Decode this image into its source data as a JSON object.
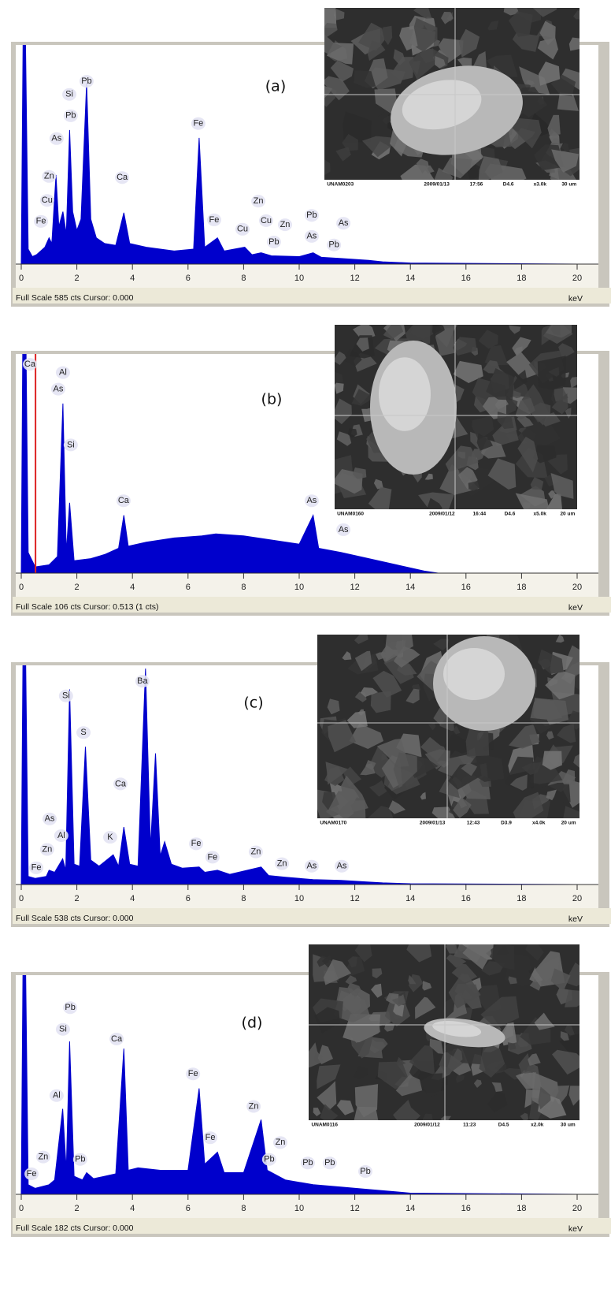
{
  "chart_data": [
    {
      "type": "area",
      "label": "(a)",
      "color": "#0000cc",
      "x": [
        0,
        0.1,
        0.25,
        0.4,
        0.55,
        0.7,
        0.85,
        1.0,
        1.1,
        1.25,
        1.35,
        1.5,
        1.62,
        1.74,
        1.85,
        2.0,
        2.15,
        2.35,
        2.5,
        2.7,
        3.0,
        3.4,
        3.69,
        3.9,
        4.5,
        5.5,
        6.2,
        6.4,
        6.6,
        7.06,
        7.3,
        8.04,
        8.3,
        8.63,
        9.0,
        10.0,
        10.5,
        10.8,
        11.5,
        12.5,
        13,
        14,
        20
      ],
      "values": [
        0,
        900,
        40,
        20,
        25,
        35,
        45,
        70,
        55,
        238,
        100,
        140,
        80,
        358,
        140,
        90,
        120,
        484,
        120,
        70,
        55,
        50,
        137,
        55,
        45,
        35,
        40,
        337,
        45,
        70,
        35,
        45,
        25,
        30,
        22,
        20,
        30,
        18,
        15,
        10,
        6,
        3,
        0
      ],
      "xlim": [
        0,
        20
      ],
      "ylim": [
        0,
        585
      ],
      "xticks": [
        0,
        2,
        4,
        6,
        8,
        10,
        12,
        14,
        16,
        18,
        20
      ],
      "xlabel": "keV",
      "footer": "Full Scale 585 cts Cursor: 0.000",
      "annotations": [
        {
          "text": "Pb",
          "x": 2.35,
          "y": 488
        },
        {
          "text": "Si",
          "x": 1.73,
          "y": 453
        },
        {
          "text": "Pb",
          "x": 1.78,
          "y": 396
        },
        {
          "text": "As",
          "x": 1.27,
          "y": 335
        },
        {
          "text": "Zn",
          "x": 1.0,
          "y": 234
        },
        {
          "text": "Cu",
          "x": 0.93,
          "y": 170
        },
        {
          "text": "Fe",
          "x": 0.71,
          "y": 114
        },
        {
          "text": "Fe",
          "x": 6.37,
          "y": 375
        },
        {
          "text": "Ca",
          "x": 3.63,
          "y": 231
        },
        {
          "text": "Fe",
          "x": 6.94,
          "y": 118
        },
        {
          "text": "Cu",
          "x": 7.96,
          "y": 93
        },
        {
          "text": "Zn",
          "x": 8.53,
          "y": 168
        },
        {
          "text": "Cu",
          "x": 8.81,
          "y": 116
        },
        {
          "text": "Zn",
          "x": 9.49,
          "y": 105
        },
        {
          "text": "Pb",
          "x": 9.09,
          "y": 59
        },
        {
          "text": "Pb",
          "x": 10.45,
          "y": 130
        },
        {
          "text": "As",
          "x": 10.45,
          "y": 74
        },
        {
          "text": "Pb",
          "x": 11.25,
          "y": 51
        },
        {
          "text": "As",
          "x": 11.59,
          "y": 109
        }
      ],
      "image_caption": [
        "UNAM0203",
        "2009/01/13",
        "17:56",
        "D4.6",
        "x3.0k",
        "30 um"
      ]
    },
    {
      "type": "area",
      "label": "(b)",
      "color": "#0000cc",
      "x": [
        0,
        0.1,
        0.25,
        0.5,
        1.0,
        1.3,
        1.5,
        1.62,
        1.74,
        1.9,
        2.5,
        3.0,
        3.5,
        3.69,
        3.85,
        4.5,
        5.5,
        6.5,
        7.0,
        8.0,
        9.0,
        10.0,
        10.5,
        10.7,
        11.5,
        12.5,
        13.5,
        14.5,
        15,
        20
      ],
      "values": [
        0,
        200,
        10,
        3,
        4,
        8,
        82,
        10,
        34,
        6,
        7,
        9,
        12,
        28,
        13,
        15,
        17,
        18,
        19,
        18,
        16,
        14,
        28,
        12,
        10,
        7,
        4,
        1,
        0,
        0
      ],
      "xlim": [
        0,
        20
      ],
      "ylim": [
        0,
        106
      ],
      "xticks": [
        0,
        2,
        4,
        6,
        8,
        10,
        12,
        14,
        16,
        18,
        20
      ],
      "xlabel": "keV",
      "cursor": 0.513,
      "cursor_color": "#dd2222",
      "footer": "Full Scale 106 cts Cursor: 0.513  (1 cts)",
      "annotations": [
        {
          "text": "Ca",
          "x": 0.31,
          "y": 101
        },
        {
          "text": "Al",
          "x": 1.5,
          "y": 97
        },
        {
          "text": "As",
          "x": 1.33,
          "y": 89
        },
        {
          "text": "Si",
          "x": 1.78,
          "y": 62
        },
        {
          "text": "Ca",
          "x": 3.68,
          "y": 35
        },
        {
          "text": "As",
          "x": 10.45,
          "y": 35
        },
        {
          "text": "As",
          "x": 11.59,
          "y": 21
        }
      ],
      "image_caption": [
        "UNAM0160",
        "2009/01/12",
        "16:44",
        "D4.6",
        "x5.0k",
        "20 um"
      ]
    },
    {
      "type": "area",
      "label": "(c)",
      "color": "#0000cc",
      "x": [
        0,
        0.1,
        0.25,
        0.5,
        0.9,
        1.0,
        1.2,
        1.49,
        1.6,
        1.74,
        1.9,
        2.1,
        2.31,
        2.5,
        2.8,
        3.31,
        3.5,
        3.69,
        3.9,
        4.2,
        4.47,
        4.65,
        4.83,
        5.0,
        5.16,
        5.4,
        5.8,
        6.4,
        6.6,
        7.06,
        7.5,
        8.63,
        8.9,
        9.5,
        10.5,
        11.5,
        12.5,
        13,
        14,
        20
      ],
      "values": [
        0,
        900,
        20,
        15,
        20,
        35,
        30,
        63,
        35,
        479,
        50,
        45,
        338,
        60,
        45,
        73,
        45,
        141,
        50,
        45,
        530,
        90,
        322,
        70,
        105,
        50,
        40,
        43,
        30,
        35,
        25,
        43,
        22,
        18,
        12,
        10,
        6,
        4,
        2,
        0
      ],
      "xlim": [
        0,
        20
      ],
      "ylim": [
        0,
        538
      ],
      "xticks": [
        0,
        2,
        4,
        6,
        8,
        10,
        12,
        14,
        16,
        18,
        20
      ],
      "xlabel": "keV",
      "footer": "Full Scale 538 cts Cursor: 0.000",
      "annotations": [
        {
          "text": "Ba",
          "x": 4.36,
          "y": 499
        },
        {
          "text": "Si",
          "x": 1.61,
          "y": 463
        },
        {
          "text": "S",
          "x": 2.24,
          "y": 373
        },
        {
          "text": "Ca",
          "x": 3.57,
          "y": 247
        },
        {
          "text": "As",
          "x": 1.02,
          "y": 161
        },
        {
          "text": "Al",
          "x": 1.44,
          "y": 120
        },
        {
          "text": "Zn",
          "x": 0.93,
          "y": 86
        },
        {
          "text": "K",
          "x": 3.2,
          "y": 116
        },
        {
          "text": "Fe",
          "x": 0.54,
          "y": 41
        },
        {
          "text": "Fe",
          "x": 6.29,
          "y": 100
        },
        {
          "text": "Fe",
          "x": 6.88,
          "y": 67
        },
        {
          "text": "Zn",
          "x": 8.44,
          "y": 80
        },
        {
          "text": "Zn",
          "x": 9.38,
          "y": 51
        },
        {
          "text": "As",
          "x": 10.45,
          "y": 45
        },
        {
          "text": "As",
          "x": 11.53,
          "y": 45
        }
      ],
      "image_caption": [
        "UNAM0170",
        "2009/01/13",
        "12:43",
        "D3.9",
        "x4.0k",
        "20 um"
      ]
    },
    {
      "type": "area",
      "label": "(d)",
      "color": "#0000cc",
      "x": [
        0,
        0.1,
        0.25,
        0.5,
        1.0,
        1.2,
        1.49,
        1.62,
        1.74,
        1.9,
        2.2,
        2.35,
        2.6,
        3.0,
        3.4,
        3.69,
        3.85,
        4.2,
        5.0,
        6.0,
        6.4,
        6.6,
        7.06,
        7.3,
        8.0,
        8.63,
        8.85,
        9.5,
        10.5,
        11.5,
        12.5,
        13.5,
        14,
        20
      ],
      "values": [
        0,
        300,
        8,
        5,
        8,
        12,
        71,
        20,
        127,
        15,
        12,
        18,
        13,
        15,
        17,
        121,
        20,
        22,
        20,
        20,
        88,
        25,
        35,
        18,
        18,
        62,
        20,
        12,
        8,
        6,
        4,
        2,
        1,
        0
      ],
      "xlim": [
        0,
        20
      ],
      "ylim": [
        0,
        182
      ],
      "xticks": [
        0,
        2,
        4,
        6,
        8,
        10,
        12,
        14,
        16,
        18,
        20
      ],
      "xlabel": "keV",
      "footer": "Full Scale 182 cts Cursor: 0.000",
      "annotations": [
        {
          "text": "Pb",
          "x": 1.76,
          "y": 155
        },
        {
          "text": "Si",
          "x": 1.5,
          "y": 137
        },
        {
          "text": "Ca",
          "x": 3.43,
          "y": 129
        },
        {
          "text": "Al",
          "x": 1.27,
          "y": 82
        },
        {
          "text": "Fe",
          "x": 6.18,
          "y": 100
        },
        {
          "text": "Zn",
          "x": 8.36,
          "y": 73
        },
        {
          "text": "Fe",
          "x": 6.8,
          "y": 47
        },
        {
          "text": "Zn",
          "x": 9.32,
          "y": 43
        },
        {
          "text": "Zn",
          "x": 0.79,
          "y": 31
        },
        {
          "text": "Pb",
          "x": 2.12,
          "y": 29
        },
        {
          "text": "Fe",
          "x": 0.37,
          "y": 17
        },
        {
          "text": "Pb",
          "x": 8.92,
          "y": 29
        },
        {
          "text": "Pb",
          "x": 10.31,
          "y": 26
        },
        {
          "text": "Pb",
          "x": 11.1,
          "y": 26
        },
        {
          "text": "Pb",
          "x": 12.38,
          "y": 19
        }
      ],
      "image_caption": [
        "UNAM0116",
        "2009/01/12",
        "11:23",
        "D4.5",
        "x2.0k",
        "30 um"
      ]
    }
  ]
}
